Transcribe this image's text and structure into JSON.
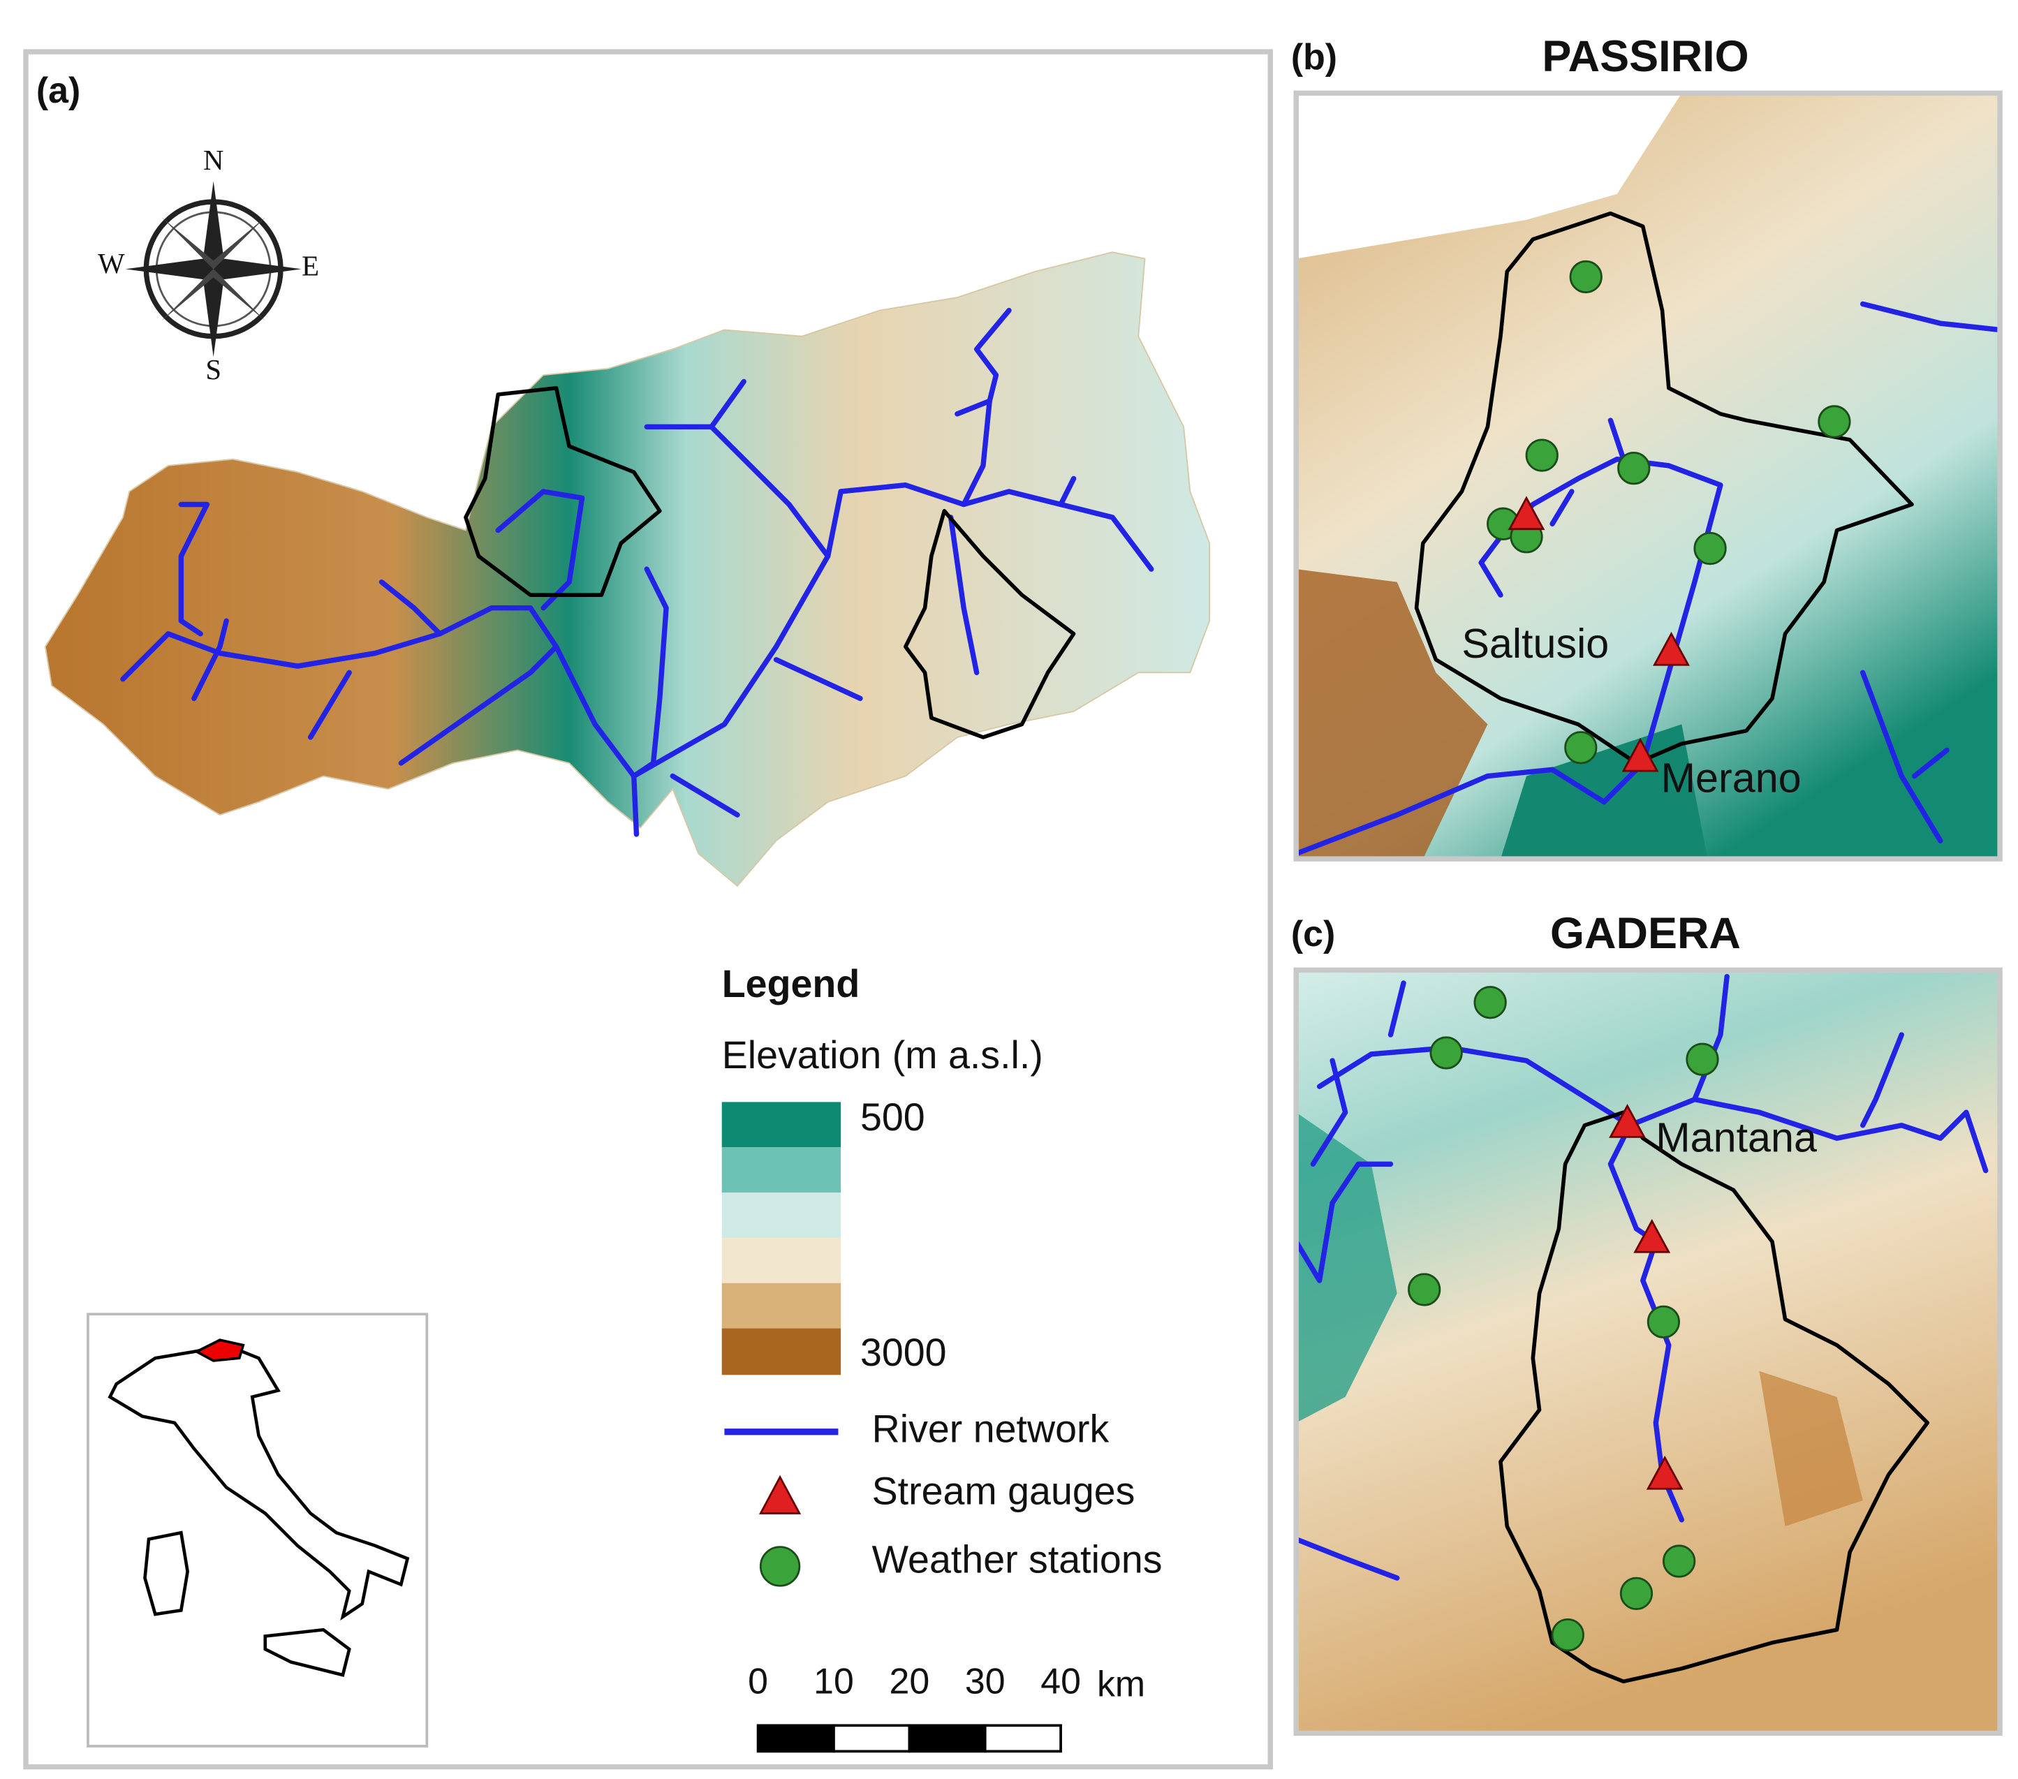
{
  "panel_a": {
    "label": "(a)",
    "compass": {
      "n": "N",
      "e": "E",
      "s": "S",
      "w": "W"
    },
    "legend": {
      "title": "Legend",
      "elevation_title": "Elevation (m a.s.l.)",
      "elevation_min": 500,
      "elevation_max": 3000,
      "items": [
        "River network",
        "Stream gauges",
        "Weather stations"
      ]
    },
    "scale_bar": {
      "ticks": [
        0,
        10,
        20,
        30,
        40
      ],
      "unit": "km"
    }
  },
  "panel_b": {
    "label": "(b)",
    "title": "PASSIRIO",
    "places": [
      "Saltusio",
      "Merano"
    ]
  },
  "panel_c": {
    "label": "(c)",
    "title": "GADERA",
    "places": [
      "Mantana"
    ]
  }
}
